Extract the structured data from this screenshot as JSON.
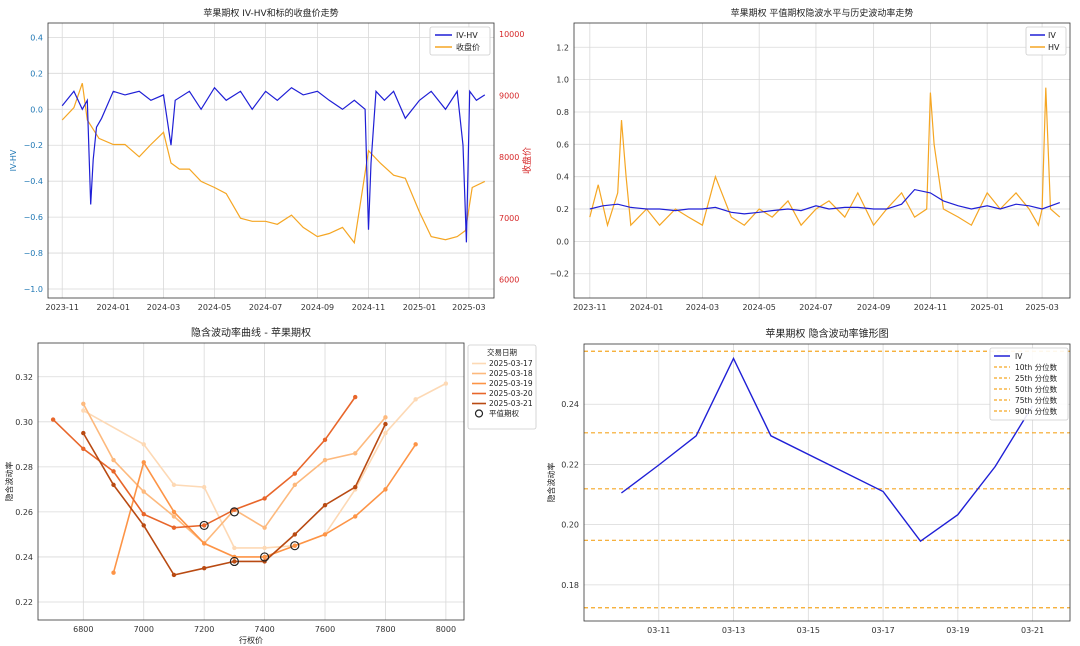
{
  "chart_data": [
    {
      "type": "line",
      "title": "苹果期权 IV-HV和标的收盘价走势",
      "xlabel": "",
      "ylabel": "IV-HV",
      "y2label": "收盘价",
      "x_tick_labels": [
        "2023-11",
        "2024-01",
        "2024-03",
        "2024-05",
        "2024-07",
        "2024-09",
        "2024-11",
        "2025-01",
        "2025-03"
      ],
      "ylim": [
        -1.05,
        0.48
      ],
      "y_ticks": [
        -1.0,
        -0.8,
        -0.6,
        -0.4,
        -0.2,
        0.0,
        0.2,
        0.4
      ],
      "y_tick_labels": [
        "−1.0",
        "−0.8",
        "−0.6",
        "−0.4",
        "−0.2",
        "0.0",
        "0.2",
        "0.4"
      ],
      "y2lim": [
        5700,
        10180
      ],
      "y2_ticks": [
        6000,
        7000,
        8000,
        9000,
        10000
      ],
      "y2_tick_labels": [
        "6000",
        "7000",
        "8000",
        "9000",
        "10000"
      ],
      "grid": true,
      "legend_position": "top-right",
      "colors": {
        "iv_hv": "#1f1fd6",
        "close": "#f5a623",
        "left_axis": "#1f77b4",
        "right_axis": "#d62728"
      },
      "series": [
        {
          "name": "IV-HV",
          "axis": "left",
          "x": [
            "2023-11-01",
            "2023-11-15",
            "2023-11-25",
            "2023-12-01",
            "2023-12-05",
            "2023-12-08",
            "2023-12-12",
            "2023-12-18",
            "2024-01-01",
            "2024-01-15",
            "2024-02-01",
            "2024-02-15",
            "2024-03-01",
            "2024-03-10",
            "2024-03-15",
            "2024-04-01",
            "2024-04-15",
            "2024-05-01",
            "2024-05-15",
            "2024-06-01",
            "2024-06-15",
            "2024-07-01",
            "2024-07-15",
            "2024-08-01",
            "2024-08-15",
            "2024-09-01",
            "2024-09-15",
            "2024-10-01",
            "2024-10-15",
            "2024-10-28",
            "2024-11-01",
            "2024-11-04",
            "2024-11-10",
            "2024-11-20",
            "2024-12-01",
            "2024-12-15",
            "2025-01-01",
            "2025-01-15",
            "2025-02-01",
            "2025-02-15",
            "2025-02-22",
            "2025-02-26",
            "2025-03-02",
            "2025-03-10",
            "2025-03-20"
          ],
          "y": [
            0.02,
            0.1,
            0.0,
            0.05,
            -0.53,
            -0.28,
            -0.1,
            -0.05,
            0.1,
            0.08,
            0.1,
            0.05,
            0.08,
            -0.2,
            0.05,
            0.1,
            0.0,
            0.12,
            0.05,
            0.1,
            0.0,
            0.1,
            0.05,
            0.12,
            0.08,
            0.1,
            0.05,
            0.0,
            0.05,
            0.0,
            -0.67,
            -0.3,
            0.1,
            0.05,
            0.1,
            -0.05,
            0.05,
            0.1,
            0.0,
            0.1,
            -0.2,
            -0.74,
            0.1,
            0.05,
            0.08
          ]
        },
        {
          "name": "收盘价",
          "axis": "right",
          "x": [
            "2023-11-01",
            "2023-11-15",
            "2023-11-25",
            "2023-12-01",
            "2023-12-15",
            "2024-01-01",
            "2024-01-15",
            "2024-02-01",
            "2024-02-15",
            "2024-03-01",
            "2024-03-10",
            "2024-03-20",
            "2024-04-01",
            "2024-04-15",
            "2024-05-01",
            "2024-05-15",
            "2024-06-01",
            "2024-06-15",
            "2024-07-01",
            "2024-07-15",
            "2024-08-01",
            "2024-08-15",
            "2024-09-01",
            "2024-09-15",
            "2024-10-01",
            "2024-10-15",
            "2024-11-01",
            "2024-11-15",
            "2024-12-01",
            "2024-12-15",
            "2025-01-01",
            "2025-01-15",
            "2025-02-01",
            "2025-02-15",
            "2025-02-25",
            "2025-03-05",
            "2025-03-20"
          ],
          "y": [
            8600,
            8800,
            9200,
            8600,
            8300,
            8200,
            8200,
            8000,
            8200,
            8400,
            7900,
            7800,
            7800,
            7600,
            7500,
            7400,
            7000,
            6950,
            6950,
            6900,
            7050,
            6850,
            6700,
            6750,
            6850,
            6600,
            8100,
            7900,
            7700,
            7650,
            7100,
            6700,
            6650,
            6700,
            6800,
            7500,
            7600
          ]
        }
      ]
    },
    {
      "type": "line",
      "title": "苹果期权 平值期权隐波水平与历史波动率走势",
      "xlabel": "",
      "ylabel": "",
      "x_tick_labels": [
        "2023-11",
        "2024-01",
        "2024-03",
        "2024-05",
        "2024-07",
        "2024-09",
        "2024-11",
        "2025-01",
        "2025-03"
      ],
      "ylim": [
        -0.35,
        1.35
      ],
      "y_ticks": [
        -0.2,
        0.0,
        0.2,
        0.4,
        0.6,
        0.8,
        1.0,
        1.2
      ],
      "y_tick_labels": [
        "−0.2",
        "0.0",
        "0.2",
        "0.4",
        "0.6",
        "0.8",
        "1.0",
        "1.2"
      ],
      "grid": true,
      "legend_position": "top-right",
      "colors": {
        "iv": "#1f1fd6",
        "hv": "#f5a623"
      },
      "series": [
        {
          "name": "IV",
          "x": [
            "2023-11-01",
            "2023-11-15",
            "2023-12-01",
            "2023-12-15",
            "2024-01-01",
            "2024-01-15",
            "2024-02-01",
            "2024-02-15",
            "2024-03-01",
            "2024-03-15",
            "2024-04-01",
            "2024-04-15",
            "2024-05-01",
            "2024-05-15",
            "2024-06-01",
            "2024-06-15",
            "2024-07-01",
            "2024-07-15",
            "2024-08-01",
            "2024-08-15",
            "2024-09-01",
            "2024-09-15",
            "2024-10-01",
            "2024-10-15",
            "2024-11-01",
            "2024-11-15",
            "2024-12-01",
            "2024-12-15",
            "2025-01-01",
            "2025-01-15",
            "2025-02-01",
            "2025-02-15",
            "2025-03-01",
            "2025-03-20"
          ],
          "y": [
            0.2,
            0.22,
            0.23,
            0.21,
            0.2,
            0.2,
            0.19,
            0.2,
            0.2,
            0.21,
            0.18,
            0.17,
            0.18,
            0.19,
            0.2,
            0.19,
            0.22,
            0.2,
            0.21,
            0.21,
            0.2,
            0.2,
            0.23,
            0.32,
            0.3,
            0.25,
            0.22,
            0.2,
            0.22,
            0.2,
            0.23,
            0.22,
            0.2,
            0.24
          ]
        },
        {
          "name": "HV",
          "x": [
            "2023-11-01",
            "2023-11-10",
            "2023-11-20",
            "2023-12-01",
            "2023-12-05",
            "2023-12-10",
            "2023-12-15",
            "2024-01-01",
            "2024-01-15",
            "2024-02-01",
            "2024-02-15",
            "2024-03-01",
            "2024-03-15",
            "2024-04-01",
            "2024-04-15",
            "2024-05-01",
            "2024-05-15",
            "2024-06-01",
            "2024-06-15",
            "2024-07-01",
            "2024-07-15",
            "2024-08-01",
            "2024-08-15",
            "2024-09-01",
            "2024-09-15",
            "2024-10-01",
            "2024-10-15",
            "2024-10-28",
            "2024-11-01",
            "2024-11-05",
            "2024-11-15",
            "2024-12-01",
            "2024-12-15",
            "2025-01-01",
            "2025-01-15",
            "2025-02-01",
            "2025-02-15",
            "2025-02-25",
            "2025-03-01",
            "2025-03-05",
            "2025-03-10",
            "2025-03-20"
          ],
          "y": [
            0.15,
            0.35,
            0.1,
            0.3,
            0.75,
            0.4,
            0.1,
            0.2,
            0.1,
            0.2,
            0.15,
            0.1,
            0.4,
            0.15,
            0.1,
            0.2,
            0.15,
            0.25,
            0.1,
            0.2,
            0.25,
            0.15,
            0.3,
            0.1,
            0.2,
            0.3,
            0.15,
            0.2,
            0.92,
            0.6,
            0.2,
            0.15,
            0.1,
            0.3,
            0.2,
            0.3,
            0.2,
            0.1,
            0.2,
            0.95,
            0.2,
            0.15
          ]
        }
      ]
    },
    {
      "type": "line",
      "title": "隐含波动率曲线 - 苹果期权",
      "xlabel": "行权价",
      "ylabel": "隐含波动率",
      "xlim": [
        6650,
        8060
      ],
      "x_ticks": [
        6800,
        7000,
        7200,
        7400,
        7600,
        7800,
        8000
      ],
      "x_tick_labels": [
        "6800",
        "7000",
        "7200",
        "7400",
        "7600",
        "7800",
        "8000"
      ],
      "ylim": [
        0.212,
        0.335
      ],
      "y_ticks": [
        0.22,
        0.24,
        0.26,
        0.28,
        0.3,
        0.32
      ],
      "y_tick_labels": [
        "0.22",
        "0.24",
        "0.26",
        "0.28",
        "0.30",
        "0.32"
      ],
      "grid": true,
      "legend_title": "交易日期",
      "legend_position": "top-right",
      "atm_label": "平值期权",
      "series": [
        {
          "name": "2025-03-17",
          "color": "#fdd9b5",
          "x": [
            6800,
            7000,
            7100,
            7200,
            7300,
            7400,
            7500,
            7600,
            7700,
            7800,
            7900,
            8000
          ],
          "y": [
            0.305,
            0.29,
            0.272,
            0.271,
            0.244,
            0.244,
            0.245,
            0.25,
            0.27,
            0.295,
            0.31,
            0.317
          ]
        },
        {
          "name": "2025-03-18",
          "color": "#fdb97d",
          "x": [
            6800,
            6900,
            7000,
            7100,
            7200,
            7300,
            7400,
            7500,
            7600,
            7700,
            7800
          ],
          "y": [
            0.308,
            0.283,
            0.269,
            0.258,
            0.246,
            0.261,
            0.253,
            0.272,
            0.283,
            0.286,
            0.302
          ]
        },
        {
          "name": "2025-03-19",
          "color": "#fd9446",
          "x": [
            6900,
            7000,
            7100,
            7200,
            7300,
            7400,
            7500,
            7600,
            7700,
            7800,
            7900
          ],
          "y": [
            0.233,
            0.282,
            0.26,
            0.246,
            0.24,
            0.24,
            0.245,
            0.25,
            0.258,
            0.27,
            0.29
          ]
        },
        {
          "name": "2025-03-20",
          "color": "#e8662a",
          "x": [
            6700,
            6800,
            6900,
            7000,
            7100,
            7200,
            7300,
            7400,
            7500,
            7600,
            7700
          ],
          "y": [
            0.301,
            0.288,
            0.278,
            0.259,
            0.253,
            0.254,
            0.261,
            0.266,
            0.277,
            0.292,
            0.311
          ]
        },
        {
          "name": "2025-03-21",
          "color": "#b94a12",
          "x": [
            6800,
            6900,
            7000,
            7100,
            7200,
            7300,
            7400,
            7500,
            7600,
            7700,
            7800
          ],
          "y": [
            0.295,
            0.272,
            0.254,
            0.232,
            0.235,
            0.238,
            0.238,
            0.25,
            0.263,
            0.271,
            0.299
          ]
        }
      ],
      "atm_points": [
        {
          "x": 7200,
          "y": 0.254
        },
        {
          "x": 7300,
          "y": 0.26
        },
        {
          "x": 7300,
          "y": 0.238
        },
        {
          "x": 7400,
          "y": 0.24
        },
        {
          "x": 7500,
          "y": 0.245
        }
      ]
    },
    {
      "type": "line",
      "title": "苹果期权 隐含波动率锥形图",
      "xlabel": "",
      "ylabel": "隐含波动率",
      "xlim": [
        "2025-03-09",
        "2025-03-22"
      ],
      "x_ticks": [
        "2025-03-11",
        "2025-03-13",
        "2025-03-15",
        "2025-03-17",
        "2025-03-19",
        "2025-03-21"
      ],
      "x_tick_labels": [
        "03-11",
        "03-13",
        "03-15",
        "03-17",
        "03-19",
        "03-21"
      ],
      "ylim": [
        0.168,
        0.26
      ],
      "y_ticks": [
        0.18,
        0.2,
        0.22,
        0.24
      ],
      "y_tick_labels": [
        "0.18",
        "0.20",
        "0.22",
        "0.24"
      ],
      "grid": true,
      "legend_position": "top-right",
      "series": [
        {
          "name": "IV",
          "color": "#1f1fd6",
          "x": [
            "2025-03-10",
            "2025-03-11",
            "2025-03-12",
            "2025-03-13",
            "2025-03-14",
            "2025-03-17",
            "2025-03-18",
            "2025-03-19",
            "2025-03-20",
            "2025-03-21"
          ],
          "y": [
            0.2105,
            0.2198,
            0.2295,
            0.2552,
            0.2295,
            0.211,
            0.1945,
            0.2033,
            0.2193,
            0.2395
          ]
        }
      ],
      "percentiles": [
        {
          "name": "10th 分位数",
          "y": 0.1724
        },
        {
          "name": "25th 分位数",
          "y": 0.1948
        },
        {
          "name": "50th 分位数",
          "y": 0.2119
        },
        {
          "name": "75th 分位数",
          "y": 0.2305
        },
        {
          "name": "90th 分位数",
          "y": 0.2576
        }
      ],
      "percentile_color": "#f5a623"
    }
  ]
}
